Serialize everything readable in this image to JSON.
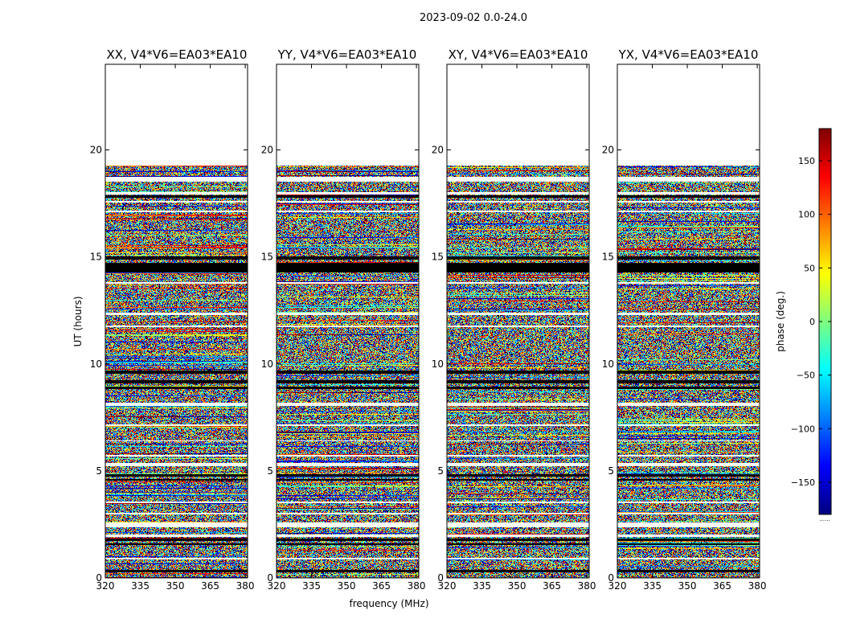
{
  "chart_data": {
    "type": "heatmap",
    "suptitle": "2023-09-02 0.0-24.0",
    "xlabel": "frequency (MHz)",
    "ylabel": "UT (hours)",
    "xlim": [
      320,
      381
    ],
    "ylim": [
      0,
      24
    ],
    "xticks": [
      320,
      335,
      350,
      365,
      380
    ],
    "yticks": [
      0,
      5,
      10,
      15,
      20
    ],
    "data_time_range": [
      0,
      19.3
    ],
    "colorbar": {
      "label": "phase (deg.)",
      "range": [
        -180,
        180
      ],
      "ticks": [
        -150,
        -100,
        -50,
        0,
        50,
        100,
        150
      ],
      "colormap": "jet",
      "footer": "......"
    },
    "panels": [
      {
        "title": "XX, V4*V6=EA03*EA10",
        "pol": "XX",
        "seed": 11
      },
      {
        "title": "YY, V4*V6=EA03*EA10",
        "pol": "YY",
        "seed": 23
      },
      {
        "title": "XY, V4*V6=EA03*EA10",
        "pol": "XY",
        "seed": 37
      },
      {
        "title": "YX, V4*V6=EA03*EA10",
        "pol": "YX",
        "seed": 53
      }
    ],
    "white_gaps_hours": [
      [
        18.55,
        18.75
      ],
      [
        17.95,
        18.05
      ],
      [
        17.55,
        17.62
      ],
      [
        17.1,
        17.2
      ],
      [
        13.75,
        13.85
      ],
      [
        12.3,
        12.4
      ],
      [
        11.75,
        11.8
      ],
      [
        8.05,
        8.2
      ],
      [
        7.1,
        7.2
      ],
      [
        6.4,
        6.45
      ],
      [
        5.7,
        5.75
      ],
      [
        5.25,
        5.4
      ],
      [
        3.5,
        3.6
      ],
      [
        3.0,
        3.05
      ],
      [
        2.4,
        2.6
      ],
      [
        1.95,
        2.05
      ],
      [
        0.9,
        0.95
      ]
    ],
    "black_bands_hours": [
      [
        17.78,
        17.88
      ],
      [
        14.3,
        14.75
      ],
      [
        14.9,
        15.05
      ],
      [
        9.55,
        9.7
      ],
      [
        9.1,
        9.25
      ],
      [
        8.85,
        8.95
      ],
      [
        4.75,
        4.85
      ],
      [
        4.55,
        4.65
      ],
      [
        1.75,
        1.85
      ],
      [
        1.55,
        1.65
      ],
      [
        0.3,
        0.4
      ]
    ]
  }
}
